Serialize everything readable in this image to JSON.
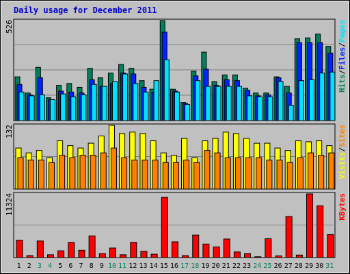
{
  "chart_data": {
    "title": "Daily usage for December 2011",
    "type": "bar",
    "categories": [
      "1",
      "2",
      "3",
      "4",
      "5",
      "6",
      "7",
      "8",
      "9",
      "10",
      "11",
      "12",
      "13",
      "14",
      "15",
      "16",
      "17",
      "18",
      "19",
      "20",
      "21",
      "22",
      "23",
      "24",
      "25",
      "26",
      "27",
      "28",
      "29",
      "30",
      "31"
    ],
    "weekend_days": [
      "3",
      "4",
      "10",
      "11",
      "17",
      "18",
      "24",
      "25",
      "31"
    ],
    "colors": {
      "background": "#c0c0c0",
      "title": "#0000cc",
      "hits": "#00805c",
      "files": "#0024ff",
      "pages": "#00e3ff",
      "visits": "#ffff00",
      "sites": "#ff8000",
      "kbytes": "#ff0000",
      "weekend_label": "#00805c",
      "weekday_label": "#000000"
    },
    "panels": [
      {
        "id": "top",
        "max_label": "526",
        "ymax": 526,
        "legend": [
          {
            "text": "Hits",
            "color": "#00805c"
          },
          {
            "text": "/",
            "color": "#000000"
          },
          {
            "text": "Files",
            "color": "#0024ff"
          },
          {
            "text": "/",
            "color": "#000000"
          },
          {
            "text": "Pages",
            "color": "#00e3ff"
          }
        ],
        "series": [
          {
            "key": "hits",
            "values": [
              230,
              145,
              280,
              120,
              185,
              195,
              175,
              275,
              225,
              250,
              295,
              275,
              210,
              165,
              526,
              165,
              95,
              260,
              360,
              205,
              240,
              240,
              170,
              145,
              145,
              230,
              180,
              430,
              435,
              455,
              390
            ]
          },
          {
            "key": "files",
            "values": [
              190,
              135,
              225,
              110,
              155,
              150,
              145,
              215,
              180,
              195,
              250,
              245,
              175,
              150,
              465,
              155,
              90,
              235,
              270,
              185,
              215,
              210,
              160,
              130,
              135,
              225,
              145,
              410,
              410,
              410,
              355
            ]
          },
          {
            "key": "pages",
            "values": [
              150,
              130,
              135,
              110,
              140,
              125,
              135,
              190,
              180,
              205,
              245,
              195,
              150,
              210,
              320,
              150,
              85,
              210,
              180,
              180,
              180,
              180,
              130,
              125,
              125,
              205,
              80,
              210,
              215,
              250,
              255
            ]
          }
        ]
      },
      {
        "id": "middle",
        "max_label": "132",
        "ymax": 132,
        "legend": [
          {
            "text": "Visits",
            "color": "#ffff00"
          },
          {
            "text": "/",
            "color": "#000000"
          },
          {
            "text": "Sites",
            "color": "#ff8000"
          }
        ],
        "series": [
          {
            "key": "visits",
            "values": [
              85,
              75,
              80,
              65,
              100,
              90,
              85,
              95,
              110,
              132,
              115,
              118,
              115,
              100,
              75,
              70,
              105,
              65,
              100,
              105,
              118,
              115,
              105,
              95,
              95,
              85,
              80,
              100,
              98,
              100,
              90
            ]
          },
          {
            "key": "sites",
            "values": [
              65,
              60,
              60,
              55,
              70,
              65,
              70,
              70,
              75,
              85,
              65,
              60,
              60,
              60,
              55,
              55,
              60,
              55,
              80,
              75,
              65,
              65,
              65,
              65,
              60,
              60,
              55,
              65,
              75,
              70,
              75
            ]
          }
        ]
      },
      {
        "id": "bottom",
        "max_label": "11324",
        "ymax": 11324,
        "legend": [
          {
            "text": "KBytes",
            "color": "#ff0000"
          }
        ],
        "series": [
          {
            "key": "kbytes",
            "values": [
              3100,
              350,
              2950,
              500,
              1200,
              2700,
              1300,
              3850,
              700,
              1700,
              500,
              2700,
              1100,
              600,
              10700,
              2800,
              350,
              4000,
              2400,
              1900,
              3300,
              1000,
              700,
              150,
              3350,
              300,
              7300,
              450,
              11324,
              9200,
              4100
            ]
          }
        ]
      }
    ]
  }
}
